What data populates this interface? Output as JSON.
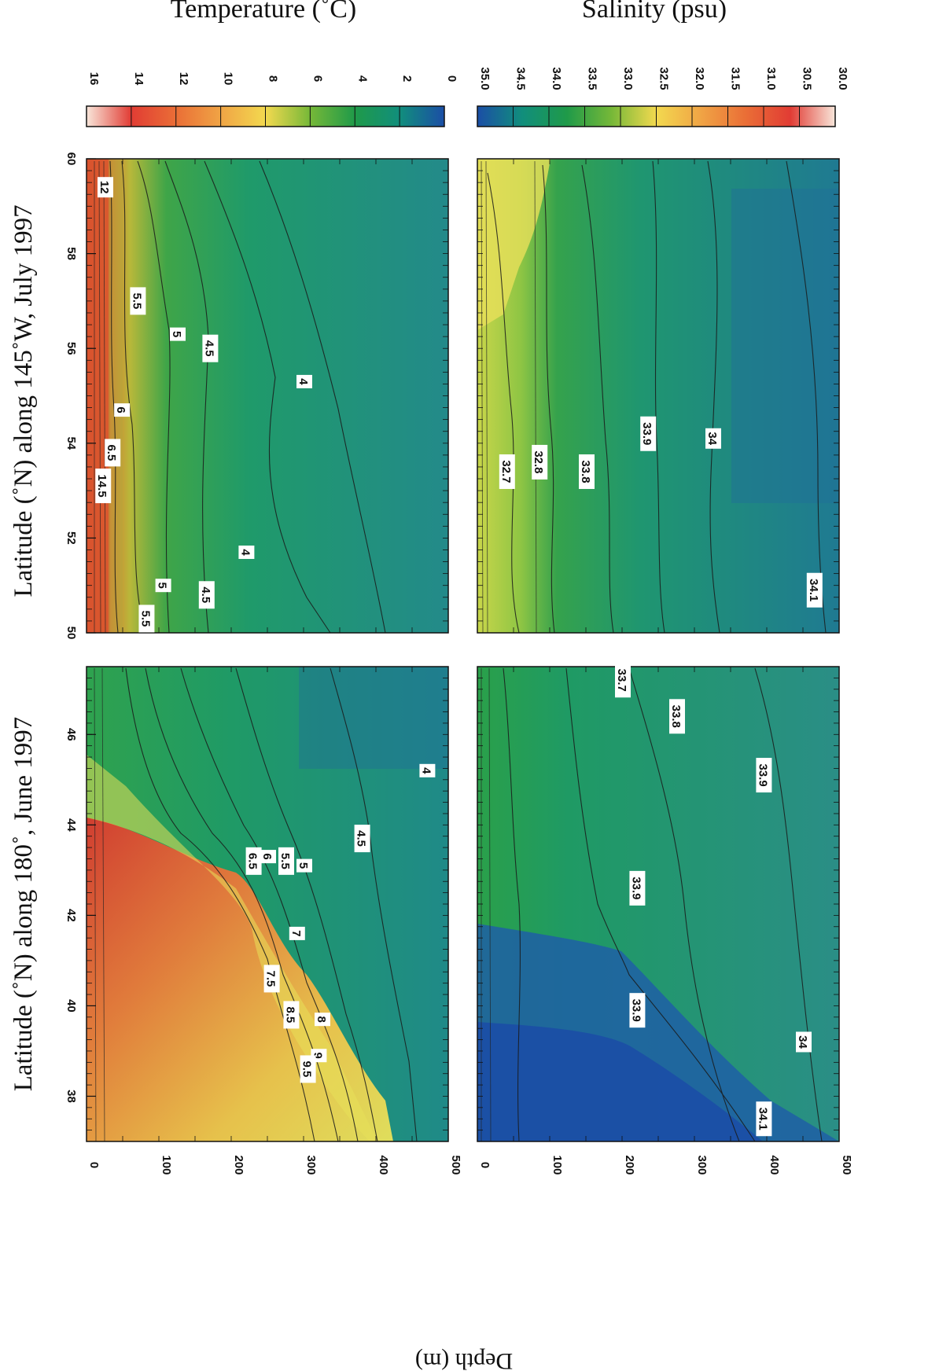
{
  "figure": {
    "ylabel": "Depth (m)",
    "depth_ticks": [
      "0",
      "100",
      "200",
      "300",
      "400",
      "500"
    ],
    "colorbars": [
      {
        "title": "Temperature (˚C)",
        "labels": [
          "16",
          "14",
          "12",
          "10",
          "8",
          "6",
          "4",
          "2",
          "0"
        ],
        "colors": [
          "#f8e6da",
          "#e13c34",
          "#ea6e36",
          "#f0a445",
          "#f3d94f",
          "#76b838",
          "#1f9a49",
          "#118e7c",
          "#1b4ea6"
        ]
      },
      {
        "title": "Salinity (psu)",
        "labels": [
          "35.0",
          "34.5",
          "34.0",
          "33.5",
          "33.0",
          "32.5",
          "32.0",
          "31.5",
          "31.0",
          "30.5",
          "30.0"
        ],
        "colors": [
          "#1b4ea6",
          "#118e7c",
          "#1f9a49",
          "#76b838",
          "#f3d94f",
          "#f0a445",
          "#ea6e36",
          "#e13c34",
          "#f8e6da"
        ]
      }
    ]
  },
  "chart_data": [
    {
      "type": "heatmap",
      "title": "Latitude (˚N) along 145˚W, July 1997",
      "variable": "Temperature (˚C)",
      "xlabel": "Latitude (˚N)",
      "ylabel": "Depth (m)",
      "xlim": [
        50,
        60
      ],
      "ylim": [
        0,
        500
      ],
      "lat_ticks": [
        "50",
        "52",
        "54",
        "56",
        "58",
        "60"
      ],
      "contour_labels": [
        {
          "text": "12",
          "lat": 59.4,
          "depth": 25
        },
        {
          "text": "5.5",
          "lat": 57.0,
          "depth": 70
        },
        {
          "text": "5",
          "lat": 56.3,
          "depth": 125
        },
        {
          "text": "4.5",
          "lat": 56.0,
          "depth": 170
        },
        {
          "text": "4",
          "lat": 55.3,
          "depth": 300
        },
        {
          "text": "6",
          "lat": 54.7,
          "depth": 48
        },
        {
          "text": "6.5",
          "lat": 53.8,
          "depth": 35
        },
        {
          "text": "14.5",
          "lat": 53.1,
          "depth": 22
        },
        {
          "text": "4",
          "lat": 51.7,
          "depth": 220
        },
        {
          "text": "5",
          "lat": 51.0,
          "depth": 105
        },
        {
          "text": "4.5",
          "lat": 50.8,
          "depth": 165
        },
        {
          "text": "5.5",
          "lat": 50.3,
          "depth": 82
        }
      ]
    },
    {
      "type": "heatmap",
      "title": "Latitude (˚N) along 180˚, June 1997",
      "variable": "Temperature (˚C)",
      "xlabel": "Latitude (˚N)",
      "ylabel": "Depth (m)",
      "xlim": [
        37,
        47.5
      ],
      "ylim": [
        0,
        500
      ],
      "lat_ticks": [
        "38",
        "40",
        "42",
        "44",
        "46"
      ],
      "contour_labels": [
        {
          "text": "4",
          "lat": 45.2,
          "depth": 470
        },
        {
          "text": "4.5",
          "lat": 43.7,
          "depth": 380
        },
        {
          "text": "5",
          "lat": 43.1,
          "depth": 300
        },
        {
          "text": "5.5",
          "lat": 43.2,
          "depth": 275
        },
        {
          "text": "6",
          "lat": 43.3,
          "depth": 250
        },
        {
          "text": "6.5",
          "lat": 43.2,
          "depth": 230
        },
        {
          "text": "7",
          "lat": 41.6,
          "depth": 290
        },
        {
          "text": "7.5",
          "lat": 40.6,
          "depth": 255
        },
        {
          "text": "8",
          "lat": 39.7,
          "depth": 325
        },
        {
          "text": "8.5",
          "lat": 39.8,
          "depth": 282
        },
        {
          "text": "9",
          "lat": 38.9,
          "depth": 320
        },
        {
          "text": "9.5",
          "lat": 38.6,
          "depth": 305
        }
      ]
    },
    {
      "type": "heatmap",
      "title": "",
      "variable": "Salinity (psu)",
      "xlabel": "Latitude (˚N)",
      "ylabel": "Depth (m)",
      "xlim": [
        50,
        60
      ],
      "ylim": [
        0,
        500
      ],
      "lat_ticks": [],
      "contour_labels": [
        {
          "text": "32.7",
          "lat": 53.4,
          "depth": 40
        },
        {
          "text": "32.8",
          "lat": 53.6,
          "depth": 85
        },
        {
          "text": "33.8",
          "lat": 53.4,
          "depth": 150
        },
        {
          "text": "33.9",
          "lat": 54.2,
          "depth": 235
        },
        {
          "text": "34",
          "lat": 54.1,
          "depth": 325
        },
        {
          "text": "34.1",
          "lat": 50.9,
          "depth": 465
        }
      ]
    },
    {
      "type": "heatmap",
      "title": "",
      "variable": "Salinity (psu)",
      "xlabel": "Latitude (˚N)",
      "ylabel": "Depth (m)",
      "xlim": [
        37,
        47.5
      ],
      "ylim": [
        0,
        500
      ],
      "lat_ticks": [],
      "contour_labels": [
        {
          "text": "33.7",
          "lat": 47.2,
          "depth": 200
        },
        {
          "text": "33.8",
          "lat": 46.4,
          "depth": 275
        },
        {
          "text": "33.9",
          "lat": 45.1,
          "depth": 395
        },
        {
          "text": "33.9",
          "lat": 42.6,
          "depth": 220
        },
        {
          "text": "33.9",
          "lat": 39.9,
          "depth": 220
        },
        {
          "text": "34",
          "lat": 39.2,
          "depth": 450
        },
        {
          "text": "34.1",
          "lat": 37.5,
          "depth": 395
        }
      ]
    }
  ]
}
